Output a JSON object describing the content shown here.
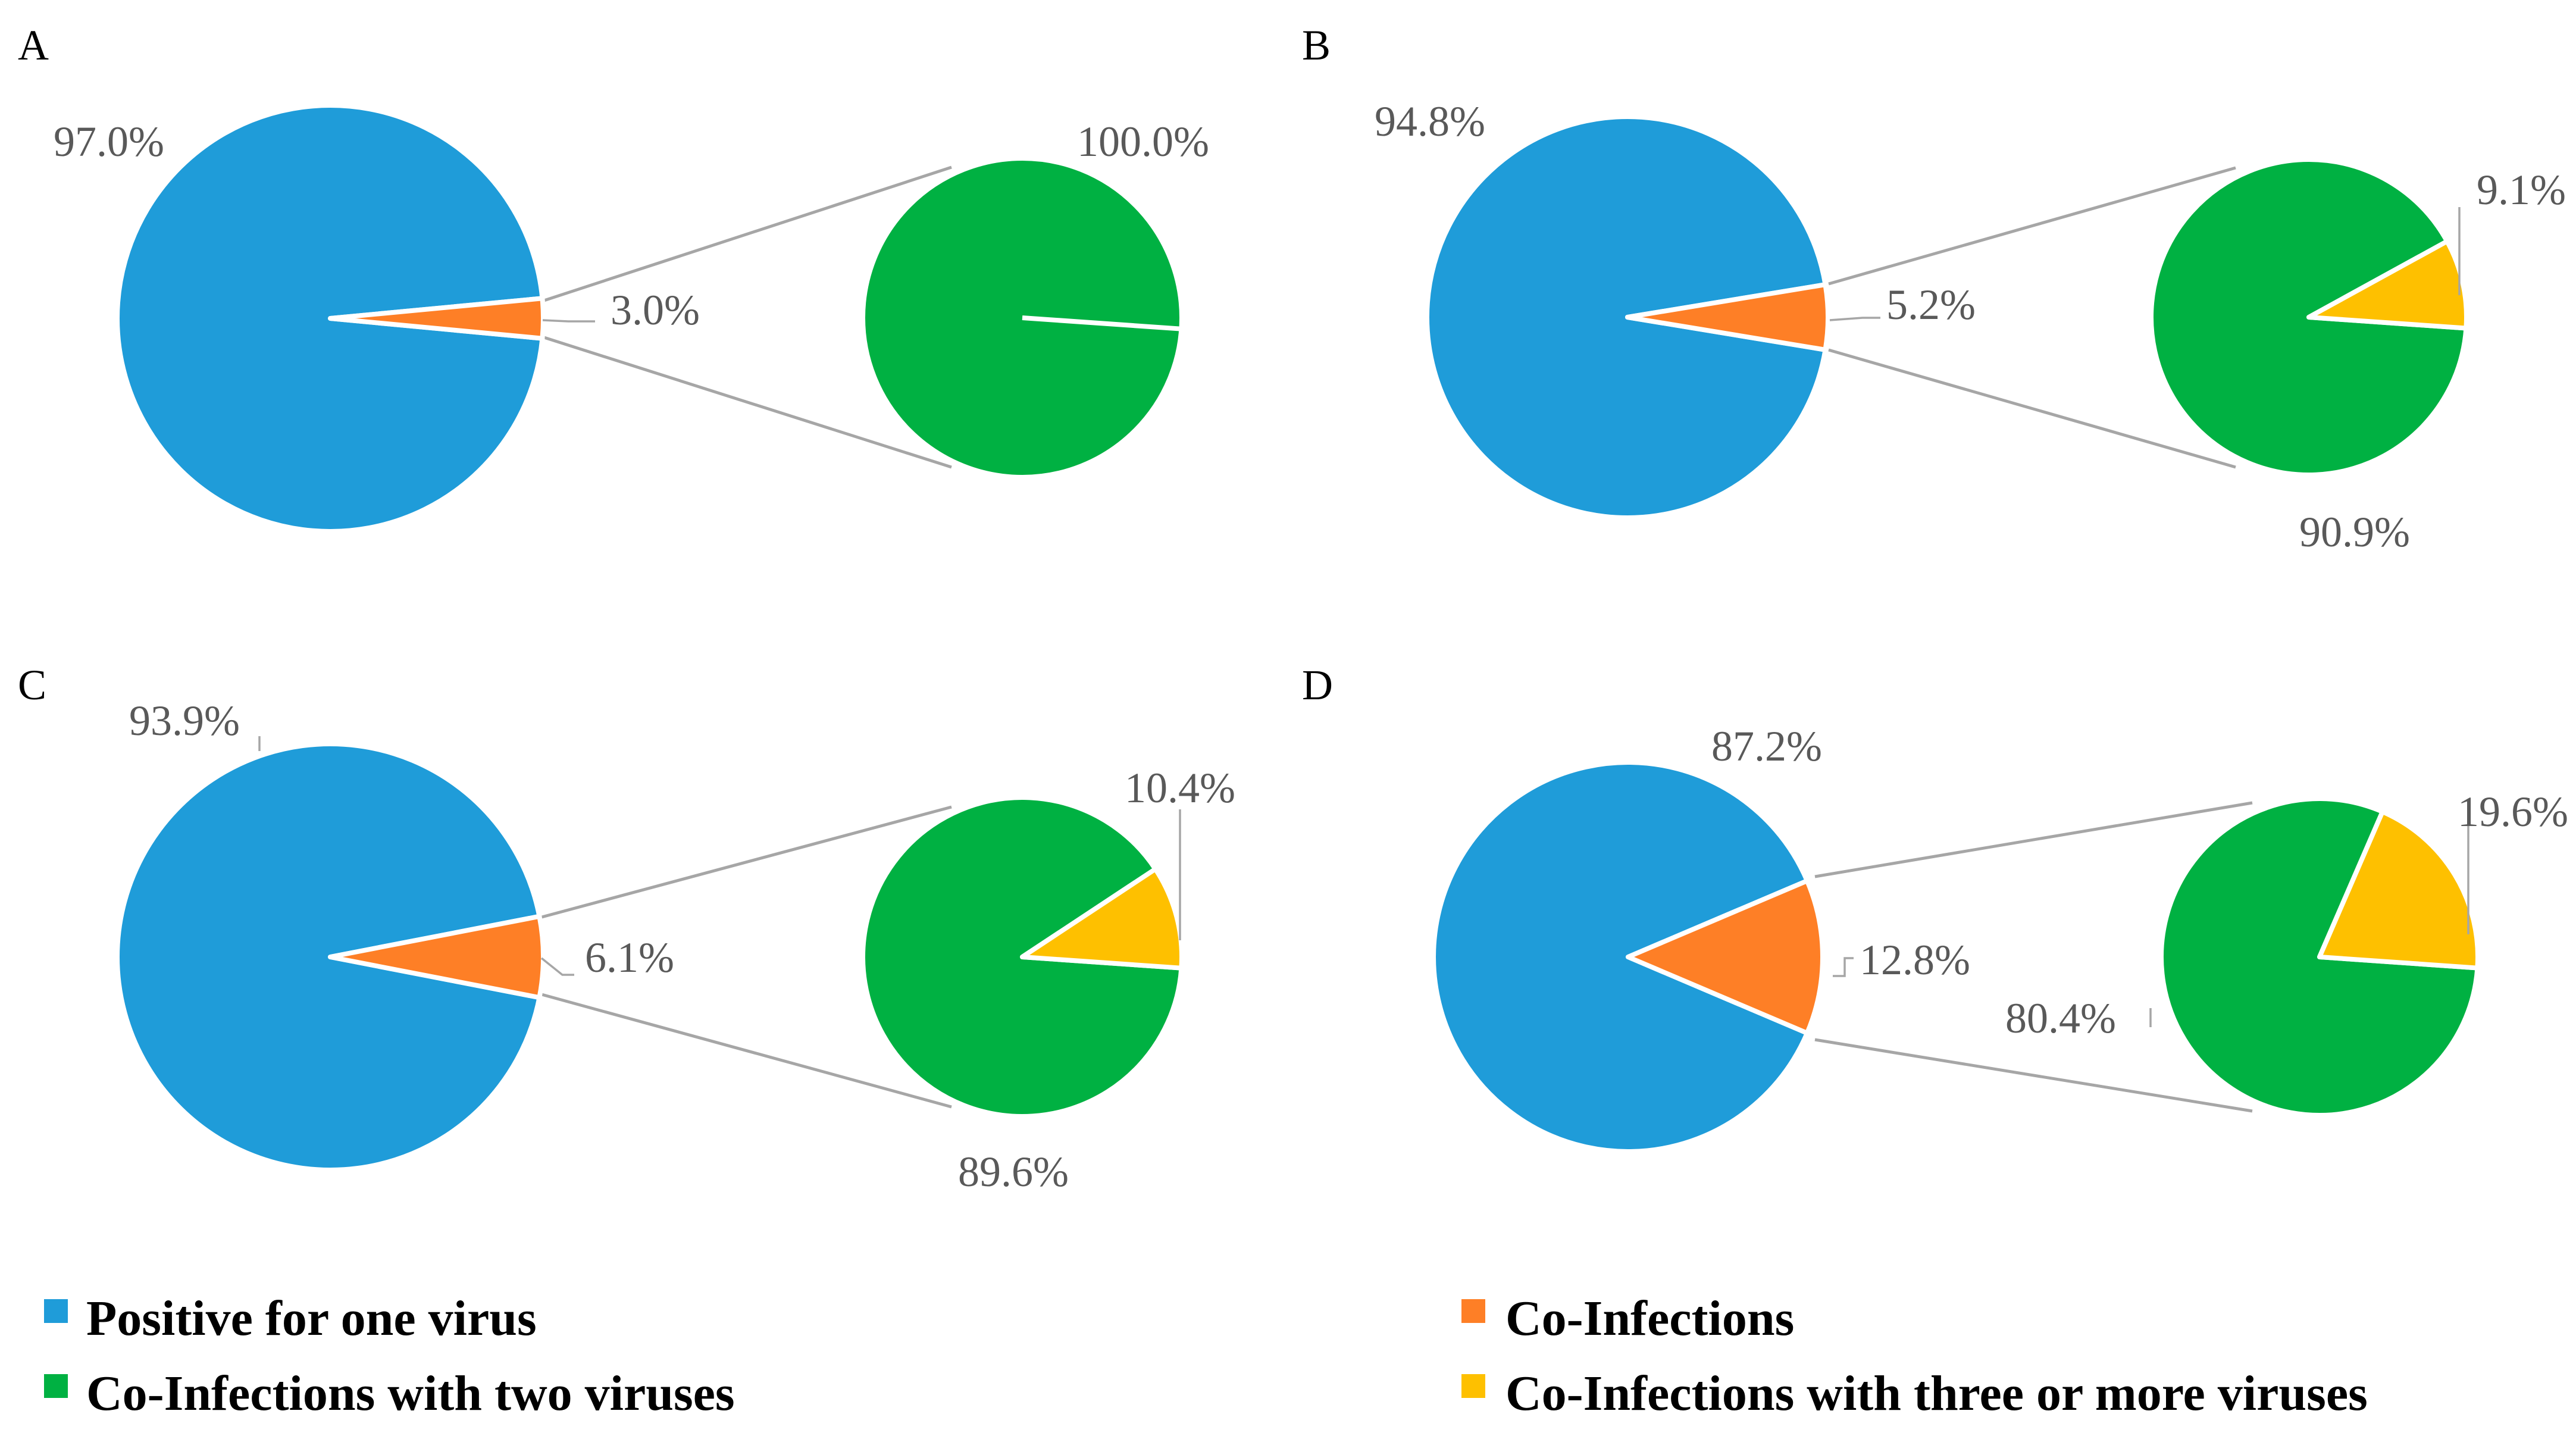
{
  "chart_data": [
    {
      "type": "pie",
      "panel": "A",
      "main_pie": [
        {
          "name": "Positive for one virus",
          "value": 97.0,
          "label": "97.0%"
        },
        {
          "name": "Co-Infections",
          "value": 3.0,
          "label": "3.0%"
        }
      ],
      "secondary_pie": [
        {
          "name": "Co-Infections with two viruses",
          "value": 100.0,
          "label": "100.0%"
        },
        {
          "name": "Co-Infections with three or more viruses",
          "value": 0.0,
          "label": ""
        }
      ]
    },
    {
      "type": "pie",
      "panel": "B",
      "main_pie": [
        {
          "name": "Positive for one virus",
          "value": 94.8,
          "label": "94.8%"
        },
        {
          "name": "Co-Infections",
          "value": 5.2,
          "label": "5.2%"
        }
      ],
      "secondary_pie": [
        {
          "name": "Co-Infections with two viruses",
          "value": 90.9,
          "label": "90.9%"
        },
        {
          "name": "Co-Infections with three or more viruses",
          "value": 9.1,
          "label": "9.1%"
        }
      ]
    },
    {
      "type": "pie",
      "panel": "C",
      "main_pie": [
        {
          "name": "Positive for one virus",
          "value": 93.9,
          "label": "93.9%"
        },
        {
          "name": "Co-Infections",
          "value": 6.1,
          "label": "6.1%"
        }
      ],
      "secondary_pie": [
        {
          "name": "Co-Infections with two viruses",
          "value": 89.6,
          "label": "89.6%"
        },
        {
          "name": "Co-Infections with three or more viruses",
          "value": 10.4,
          "label": "10.4%"
        }
      ]
    },
    {
      "type": "pie",
      "panel": "D",
      "main_pie": [
        {
          "name": "Positive for one virus",
          "value": 87.2,
          "label": "87.2%"
        },
        {
          "name": "Co-Infections",
          "value": 12.8,
          "label": "12.8%"
        }
      ],
      "secondary_pie": [
        {
          "name": "Co-Infections with two viruses",
          "value": 80.4,
          "label": "80.4%"
        },
        {
          "name": "Co-Infections with three or more viruses",
          "value": 19.6,
          "label": "19.6%"
        }
      ]
    }
  ],
  "legend": [
    {
      "label": "Positive for one virus",
      "color": "#1f9cd9"
    },
    {
      "label": "Co-Infections",
      "color": "#fe7f26"
    },
    {
      "label": "Co-Infections with two viruses",
      "color": "#00b142"
    },
    {
      "label": "Co-Infections with three or more viruses",
      "color": "#fec000"
    }
  ],
  "colors": {
    "one_virus": "#1f9cd9",
    "co_infections": "#fe7f26",
    "two_viruses": "#00b142",
    "three_plus": "#fec000"
  }
}
